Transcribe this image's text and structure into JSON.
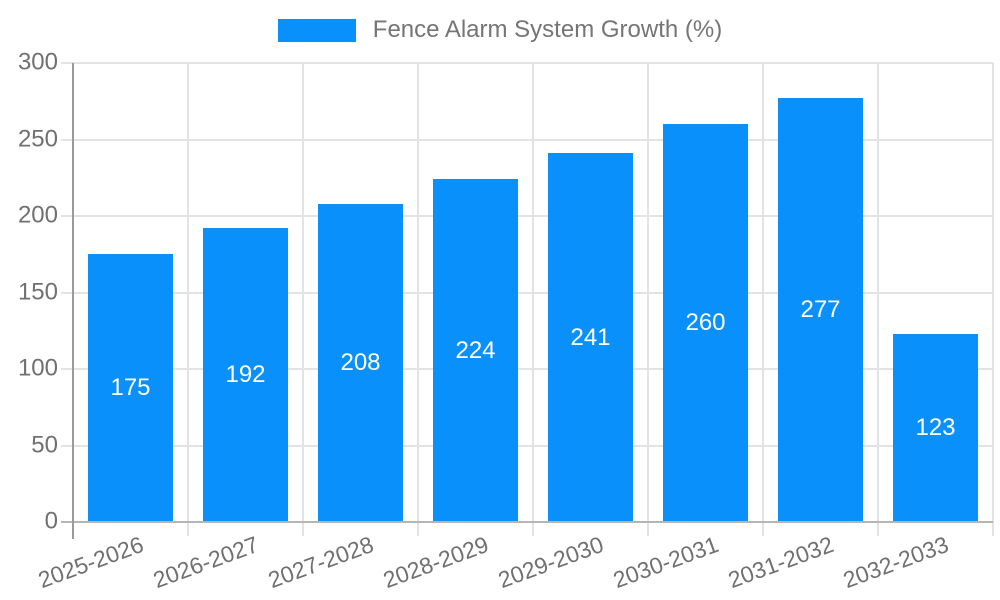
{
  "chart_data": {
    "type": "bar",
    "title": "Fence Alarm System Growth (%)",
    "categories": [
      "2025-2026",
      "2026-2027",
      "2027-2028",
      "2028-2029",
      "2029-2030",
      "2030-2031",
      "2031-2032",
      "2032-2033"
    ],
    "series": [
      {
        "name": "Fence Alarm System Growth (%)",
        "values": [
          175,
          192,
          208,
          224,
          241,
          260,
          277,
          123
        ]
      }
    ],
    "xlabel": "",
    "ylabel": "",
    "ylim": [
      0,
      300
    ],
    "yticks": [
      0,
      50,
      100,
      150,
      200,
      250,
      300
    ],
    "grid": true,
    "legend_position": "top",
    "colors": {
      "bar": "#0990fa",
      "value_label": "#ffffff",
      "axis_text": "#707070",
      "legend_text": "#757575",
      "gridline": "#e3e3e3",
      "y_axis_line": "#9a9a9a",
      "x_axis_line": "#b5b5b5",
      "background": "#ffffff"
    },
    "value_labels_shown": true,
    "x_tick_label_rotation_deg": -20
  }
}
